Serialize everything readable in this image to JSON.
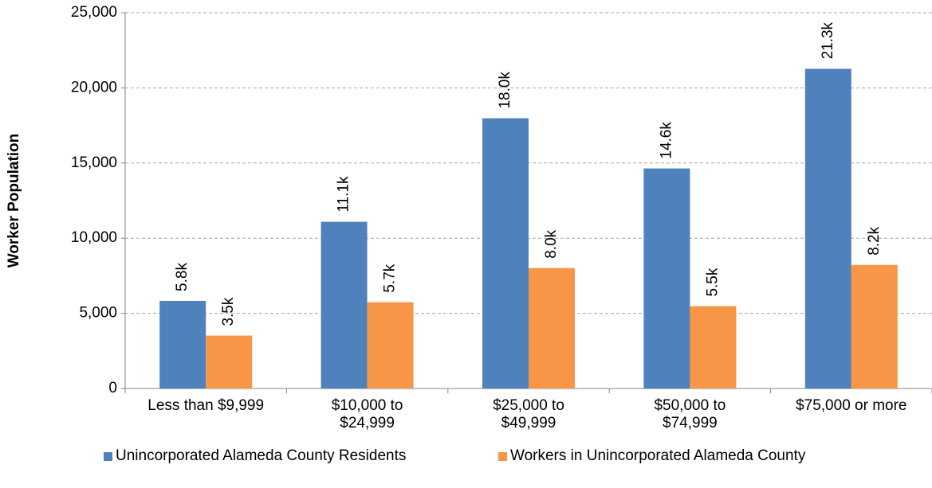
{
  "chart_data": {
    "type": "bar",
    "ylabel": "Worker Population",
    "categories": [
      "Less than $9,999",
      "$10,000 to $24,999",
      "$25,000 to $49,999",
      "$50,000 to $74,999",
      "$75,000 or more"
    ],
    "series": [
      {
        "name": "Unincorporated Alameda County Residents",
        "color": "#4f81bd",
        "values": [
          5830,
          11090,
          17980,
          14640,
          21270
        ],
        "value_labels": [
          "5.8k",
          "11.1k",
          "18.0k",
          "14.6k",
          "21.3k"
        ]
      },
      {
        "name": "Workers in Unincorporated Alameda County",
        "color": "#f79646",
        "values": [
          3520,
          5740,
          8010,
          5480,
          8220
        ],
        "value_labels": [
          "3.5k",
          "5.7k",
          "8.0k",
          "5.5k",
          "8.2k"
        ]
      }
    ],
    "ylim": [
      0,
      25000
    ],
    "yticks": [
      0,
      {
        "value": 5000,
        "label": "5,000"
      },
      {
        "value": 10000,
        "label": "10,000"
      },
      {
        "value": 15000,
        "label": "15,000"
      },
      {
        "value": 20000,
        "label": "20,000"
      },
      {
        "value": 25000,
        "label": "25,000"
      }
    ],
    "grid": true,
    "legend": "bottom"
  }
}
